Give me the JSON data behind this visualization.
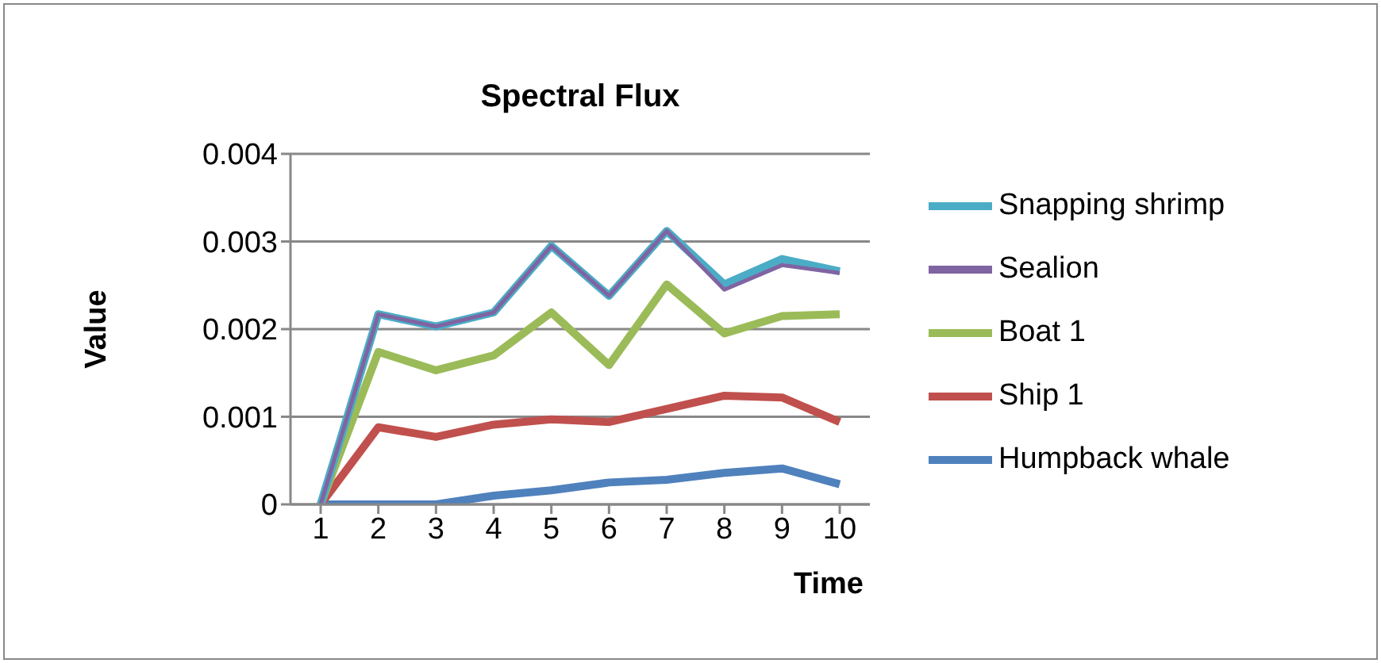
{
  "chart_data": {
    "type": "line",
    "title": "Spectral Flux",
    "xlabel": "Time",
    "ylabel": "Value",
    "categories": [
      "1",
      "2",
      "3",
      "4",
      "5",
      "6",
      "7",
      "8",
      "9",
      "10"
    ],
    "series": [
      {
        "name": "Snapping shrimp",
        "color": "#4bacc6",
        "values": [
          0,
          0.00217,
          0.00203,
          0.00219,
          0.00295,
          0.00238,
          0.00312,
          0.00251,
          0.0028,
          0.00266
        ]
      },
      {
        "name": "Sealion",
        "color": "#8064a2",
        "values": [
          0,
          0.00217,
          0.00203,
          0.00219,
          0.00295,
          0.00238,
          0.00312,
          0.00245,
          0.00273,
          0.00264
        ]
      },
      {
        "name": "Boat 1",
        "color": "#9bbb59",
        "values": [
          0,
          0.00174,
          0.00153,
          0.0017,
          0.00219,
          0.00159,
          0.00251,
          0.00195,
          0.00215,
          0.00217
        ]
      },
      {
        "name": "Ship 1",
        "color": "#c0504d",
        "values": [
          0,
          0.00088,
          0.00077,
          0.00091,
          0.00097,
          0.00094,
          0.00109,
          0.00124,
          0.00122,
          0.00094
        ]
      },
      {
        "name": "Humpback whale",
        "color": "#4f81bd",
        "values": [
          0,
          0,
          0,
          0.0001,
          0.00016,
          0.00025,
          0.00028,
          0.00036,
          0.00041,
          0.00023
        ]
      }
    ],
    "ylim": [
      0,
      0.004
    ],
    "yticks": [
      0,
      0.001,
      0.002,
      0.003,
      0.004
    ],
    "grid": "y",
    "legend": "right",
    "marker": "none",
    "line_style": "solid"
  }
}
